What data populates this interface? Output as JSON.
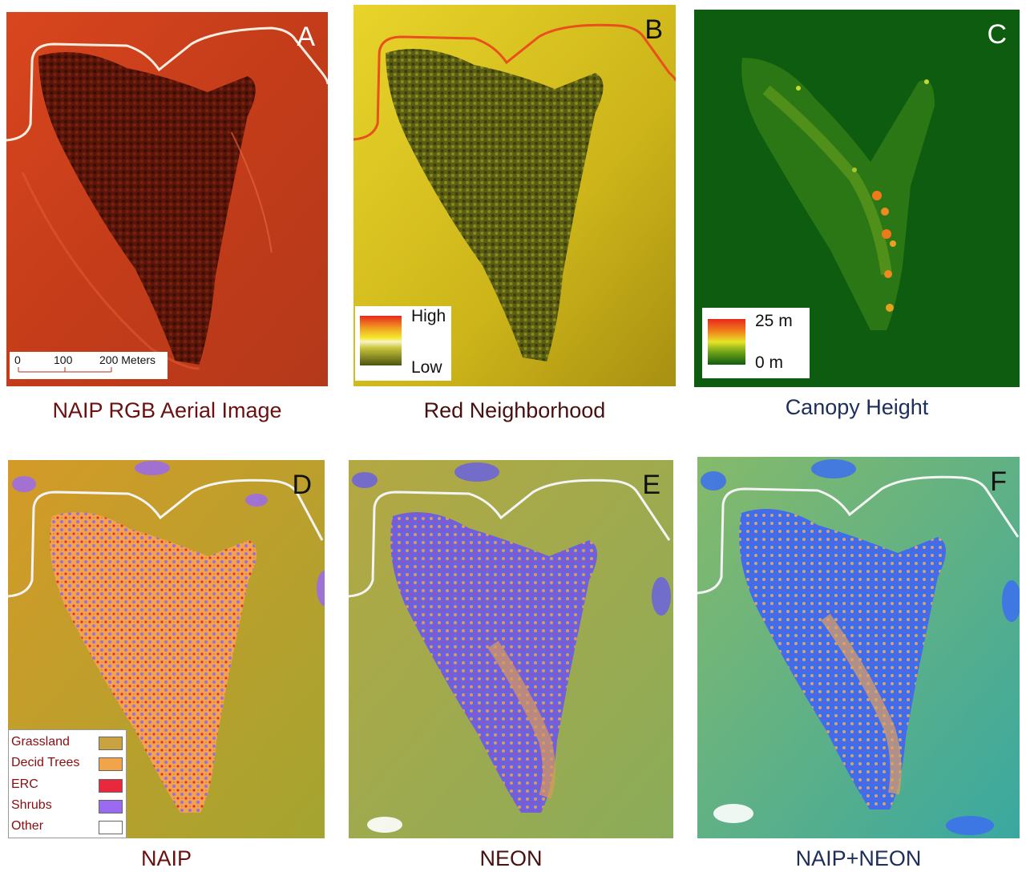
{
  "panels": {
    "a": {
      "letter": "A",
      "caption": "NAIP RGB Aerial Image"
    },
    "b": {
      "letter": "B",
      "caption": "Red Neighborhood"
    },
    "c": {
      "letter": "C",
      "caption": "Canopy Height"
    },
    "d": {
      "letter": "D",
      "caption": "NAIP"
    },
    "e": {
      "letter": "E",
      "caption": "NEON"
    },
    "f": {
      "letter": "F",
      "caption": "NAIP+NEON"
    }
  },
  "scale_bar": {
    "tick_0": "0",
    "tick_100": "100",
    "tick_200": "200 Meters"
  },
  "red_neighborhood_legend": {
    "high": "High",
    "low": "Low"
  },
  "canopy_legend": {
    "max": "25 m",
    "min": "0 m"
  },
  "class_legend": [
    {
      "label": "Grassland",
      "color": "#c9a340"
    },
    {
      "label": "Decid Trees",
      "color": "#f2a44a"
    },
    {
      "label": "ERC",
      "color": "#e8283c"
    },
    {
      "label": "Shrubs",
      "color": "#9a6af0"
    },
    {
      "label": "Other",
      "color": "#ffffff"
    }
  ],
  "colors": {
    "naip_background": "#c7401c",
    "naip_vegetation": "#4a1208",
    "red_nbhd_background": "#d8c21a",
    "red_nbhd_vegetation": "#4e5410",
    "canopy_background": "#0d5c10",
    "canopy_low": "#5a9a18",
    "canopy_high": "#f07a1a",
    "class_background_d": "#c89a2a",
    "class_background_e": "#9aae55",
    "class_background_f": "#5db090",
    "road": "#f4eee0"
  }
}
